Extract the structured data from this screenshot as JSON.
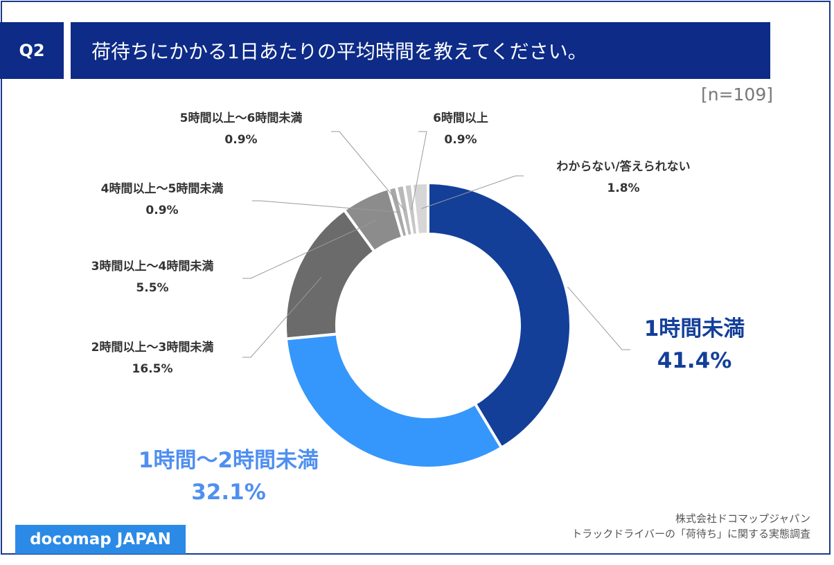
{
  "header": {
    "badge": "Q2",
    "title": "荷待ちにかかる1日あたりの平均時間を教えてください。"
  },
  "sample": "[n=109]",
  "colors": {
    "header_bg": "#0d2b87",
    "slice_1": "#133f99",
    "slice_2": "#3597fb",
    "slice_3": "#6b6b6b",
    "slice_4": "#8c8c8c",
    "slice_5": "#a8a8a8",
    "slice_6": "#b8b8b8",
    "slice_7": "#c6c6c6",
    "slice_8": "#d6d6d6",
    "logo_bg": "#2b8ae6"
  },
  "chart_data": {
    "type": "pie",
    "variant": "donut",
    "title": "荷待ちにかかる1日あたりの平均時間を教えてください。",
    "slices": [
      {
        "label": "1時間未満",
        "value": 41.4,
        "value_label": "41.4%"
      },
      {
        "label": "1時間〜2時間未満",
        "value": 32.1,
        "value_label": "32.1%"
      },
      {
        "label": "2時間以上〜3時間未満",
        "value": 16.5,
        "value_label": "16.5%"
      },
      {
        "label": "3時間以上〜4時間未満",
        "value": 5.5,
        "value_label": "5.5%"
      },
      {
        "label": "4時間以上〜5時間未満",
        "value": 0.9,
        "value_label": "0.9%"
      },
      {
        "label": "5時間以上〜6時間未満",
        "value": 0.9,
        "value_label": "0.9%"
      },
      {
        "label": "6時間以上",
        "value": 0.9,
        "value_label": "0.9%"
      },
      {
        "label": "わからない/答えられない",
        "value": 1.8,
        "value_label": "1.8%"
      }
    ]
  },
  "footer": {
    "logo": "docomap JAPAN",
    "source_line1": "株式会社ドコマップジャパン",
    "source_line2": "トラックドライバーの「荷待ち」に関する実態調査"
  }
}
